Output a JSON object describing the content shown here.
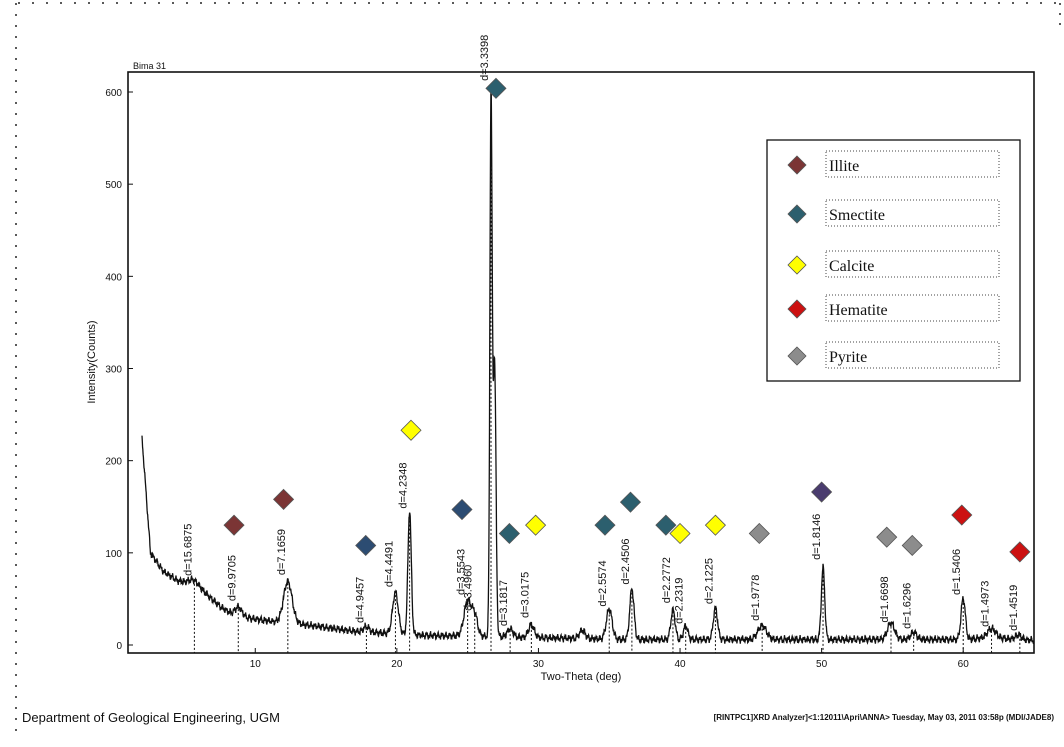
{
  "sample_label": "Bima 31",
  "footer": {
    "left": "Department of Geological Engineering, UGM",
    "right": "[RINTPC1]XRD Analyzer]<1:12011\\Apri\\ANNA> Tuesday, May 03, 2011 03:58p (MDI/JADE8)"
  },
  "colors": {
    "illite": "#7b3535",
    "smectite": "#2c5f6e",
    "smectite_dark": "#2c4c72",
    "smectite_purple": "#4a3c6e",
    "calcite": "#ffff00",
    "hematite": "#cc1111",
    "pyrite": "#8c8c8c"
  },
  "chart_data": {
    "type": "line",
    "title": "",
    "xlabel": "Two-Theta (deg)",
    "ylabel": "Intensity(Counts)",
    "xlim": [
      2,
      65
    ],
    "ylim": [
      0,
      650
    ],
    "x_ticks": [
      10,
      20,
      30,
      40,
      50,
      60
    ],
    "y_ticks": [
      0,
      100,
      200,
      300,
      400,
      500,
      600
    ],
    "grid": false,
    "legend_position": "top-right",
    "legend": [
      {
        "name": "Illite",
        "color_key": "illite"
      },
      {
        "name": "Smectite",
        "color_key": "smectite"
      },
      {
        "name": "Calcite",
        "color_key": "calcite"
      },
      {
        "name": "Hematite",
        "color_key": "hematite"
      },
      {
        "name": "Pyrite",
        "color_key": "pyrite"
      }
    ],
    "background": [
      [
        2,
        225
      ],
      [
        2.6,
        100
      ],
      [
        3.5,
        80
      ],
      [
        4.5,
        70
      ],
      [
        5.5,
        66
      ],
      [
        6.5,
        56
      ],
      [
        7.5,
        42
      ],
      [
        8.5,
        32
      ],
      [
        10,
        28
      ],
      [
        11.5,
        25
      ],
      [
        13,
        23
      ],
      [
        15,
        19
      ],
      [
        17,
        15
      ],
      [
        19,
        13
      ],
      [
        21,
        11
      ],
      [
        23,
        10
      ],
      [
        25,
        10
      ],
      [
        27,
        9
      ],
      [
        30,
        8
      ],
      [
        33,
        7
      ],
      [
        36,
        6
      ],
      [
        40,
        6
      ],
      [
        45,
        6
      ],
      [
        50,
        6
      ],
      [
        55,
        6
      ],
      [
        60,
        6
      ],
      [
        62,
        8
      ],
      [
        64,
        6
      ],
      [
        65,
        5
      ]
    ],
    "peaks": [
      {
        "x": 5.7,
        "h": 6,
        "w": 0.35
      },
      {
        "x": 8.8,
        "h": 10,
        "w": 0.25
      },
      {
        "x": 12.3,
        "h": 45,
        "w": 0.3
      },
      {
        "x": 17.85,
        "h": 6,
        "w": 0.2
      },
      {
        "x": 19.9,
        "h": 45,
        "w": 0.2
      },
      {
        "x": 20.9,
        "h": 135,
        "w": 0.12
      },
      {
        "x": 25.0,
        "h": 38,
        "w": 0.25
      },
      {
        "x": 25.5,
        "h": 22,
        "w": 0.2
      },
      {
        "x": 26.65,
        "h": 585,
        "w": 0.08
      },
      {
        "x": 26.9,
        "h": 300,
        "w": 0.1
      },
      {
        "x": 28.0,
        "h": 9,
        "w": 0.2
      },
      {
        "x": 29.5,
        "h": 14,
        "w": 0.2
      },
      {
        "x": 33.1,
        "h": 9,
        "w": 0.2
      },
      {
        "x": 35.0,
        "h": 33,
        "w": 0.2
      },
      {
        "x": 36.6,
        "h": 55,
        "w": 0.15
      },
      {
        "x": 39.5,
        "h": 32,
        "w": 0.15
      },
      {
        "x": 40.4,
        "h": 15,
        "w": 0.15
      },
      {
        "x": 42.5,
        "h": 34,
        "w": 0.15
      },
      {
        "x": 45.8,
        "h": 15,
        "w": 0.3
      },
      {
        "x": 50.1,
        "h": 78,
        "w": 0.12
      },
      {
        "x": 54.9,
        "h": 18,
        "w": 0.25
      },
      {
        "x": 56.5,
        "h": 8,
        "w": 0.2
      },
      {
        "x": 60.0,
        "h": 45,
        "w": 0.15
      },
      {
        "x": 62.0,
        "h": 10,
        "w": 0.3
      },
      {
        "x": 63.9,
        "h": 5,
        "w": 0.2
      }
    ],
    "d_labels": [
      {
        "x": 5.7,
        "label": "d=15.6875"
      },
      {
        "x": 8.8,
        "label": "d=9.9705"
      },
      {
        "x": 12.3,
        "label": "d=7.1659"
      },
      {
        "x": 17.85,
        "label": "d=4.9457"
      },
      {
        "x": 19.9,
        "label": "d=4.4491"
      },
      {
        "x": 20.9,
        "label": "d=4.2348"
      },
      {
        "x": 25.0,
        "label": "d=3.5543"
      },
      {
        "x": 25.5,
        "label": "d=3.4960"
      },
      {
        "x": 26.65,
        "label": "d=3.3398"
      },
      {
        "x": 28.0,
        "label": "d=3.1817"
      },
      {
        "x": 29.5,
        "label": "d=3.0175"
      },
      {
        "x": 35.0,
        "label": "d=2.5574"
      },
      {
        "x": 36.6,
        "label": "d=2.4506"
      },
      {
        "x": 39.5,
        "label": "d=2.2772"
      },
      {
        "x": 40.4,
        "label": "d=2.2319"
      },
      {
        "x": 42.5,
        "label": "d=2.1225"
      },
      {
        "x": 45.8,
        "label": "d=1.9778"
      },
      {
        "x": 50.1,
        "label": "d=1.8146"
      },
      {
        "x": 54.9,
        "label": "d=1.6698"
      },
      {
        "x": 56.5,
        "label": "d=1.6296"
      },
      {
        "x": 60.0,
        "label": "d=1.5406"
      },
      {
        "x": 62.0,
        "label": "d=1.4973"
      },
      {
        "x": 64.0,
        "label": "d=1.4519"
      }
    ],
    "markers": [
      {
        "x": 8.5,
        "y": 130,
        "color_key": "illite"
      },
      {
        "x": 12.0,
        "y": 158,
        "color_key": "illite"
      },
      {
        "x": 17.8,
        "y": 108,
        "color_key": "smectite_dark"
      },
      {
        "x": 21.0,
        "y": 233,
        "color_key": "calcite"
      },
      {
        "x": 24.6,
        "y": 147,
        "color_key": "smectite_dark"
      },
      {
        "x": 27.0,
        "y": 604,
        "color_key": "smectite"
      },
      {
        "x": 27.95,
        "y": 121,
        "color_key": "smectite"
      },
      {
        "x": 29.8,
        "y": 130,
        "color_key": "calcite"
      },
      {
        "x": 34.7,
        "y": 130,
        "color_key": "smectite"
      },
      {
        "x": 36.5,
        "y": 155,
        "color_key": "smectite"
      },
      {
        "x": 39.0,
        "y": 130,
        "color_key": "smectite"
      },
      {
        "x": 40.0,
        "y": 121,
        "color_key": "calcite"
      },
      {
        "x": 42.5,
        "y": 130,
        "color_key": "calcite"
      },
      {
        "x": 45.6,
        "y": 121,
        "color_key": "pyrite"
      },
      {
        "x": 50.0,
        "y": 166,
        "color_key": "smectite_purple"
      },
      {
        "x": 54.6,
        "y": 117,
        "color_key": "pyrite"
      },
      {
        "x": 56.4,
        "y": 108,
        "color_key": "pyrite"
      },
      {
        "x": 59.9,
        "y": 141,
        "color_key": "hematite"
      },
      {
        "x": 64.0,
        "y": 101,
        "color_key": "hematite"
      }
    ]
  }
}
